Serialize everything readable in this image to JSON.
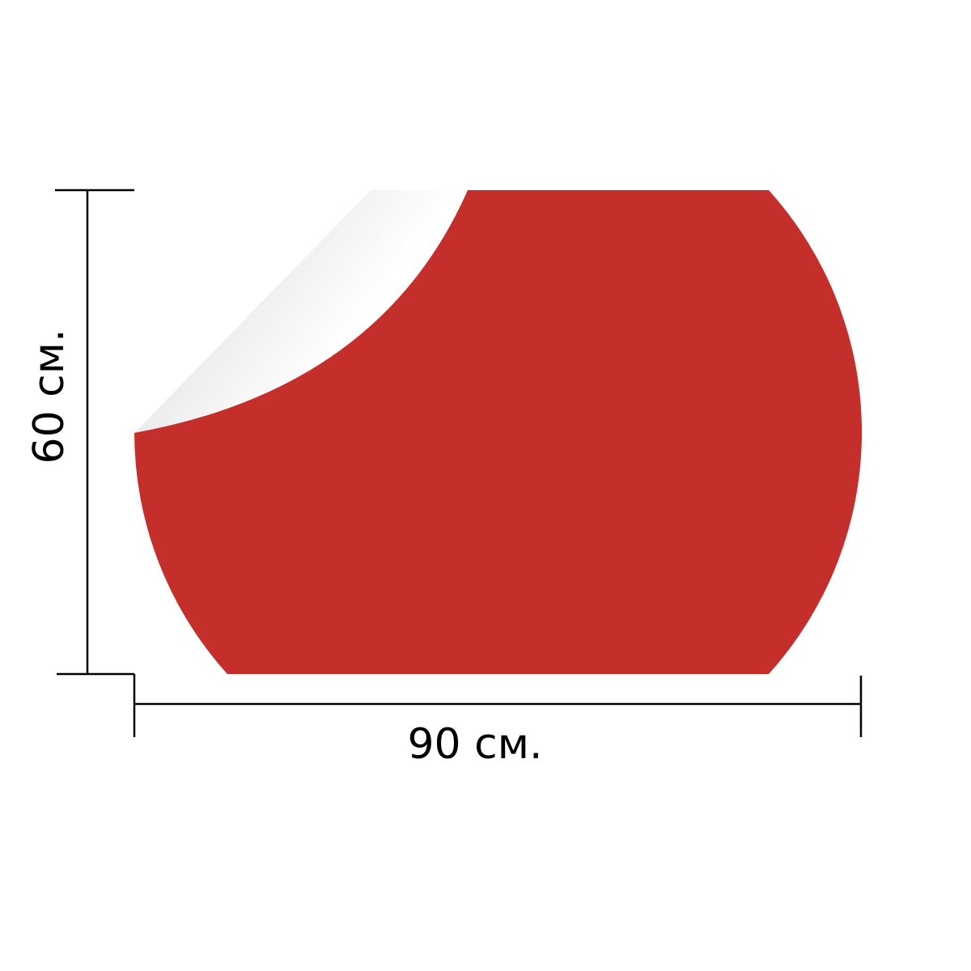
{
  "colors": {
    "sticker_fill": "#C42F2C",
    "peel_light": "#FFFFFF",
    "peel_shadow": "#D4D4D4",
    "dimension_line": "#000000"
  },
  "dimensions": {
    "width_label": "90 см.",
    "height_label": "60 см."
  }
}
